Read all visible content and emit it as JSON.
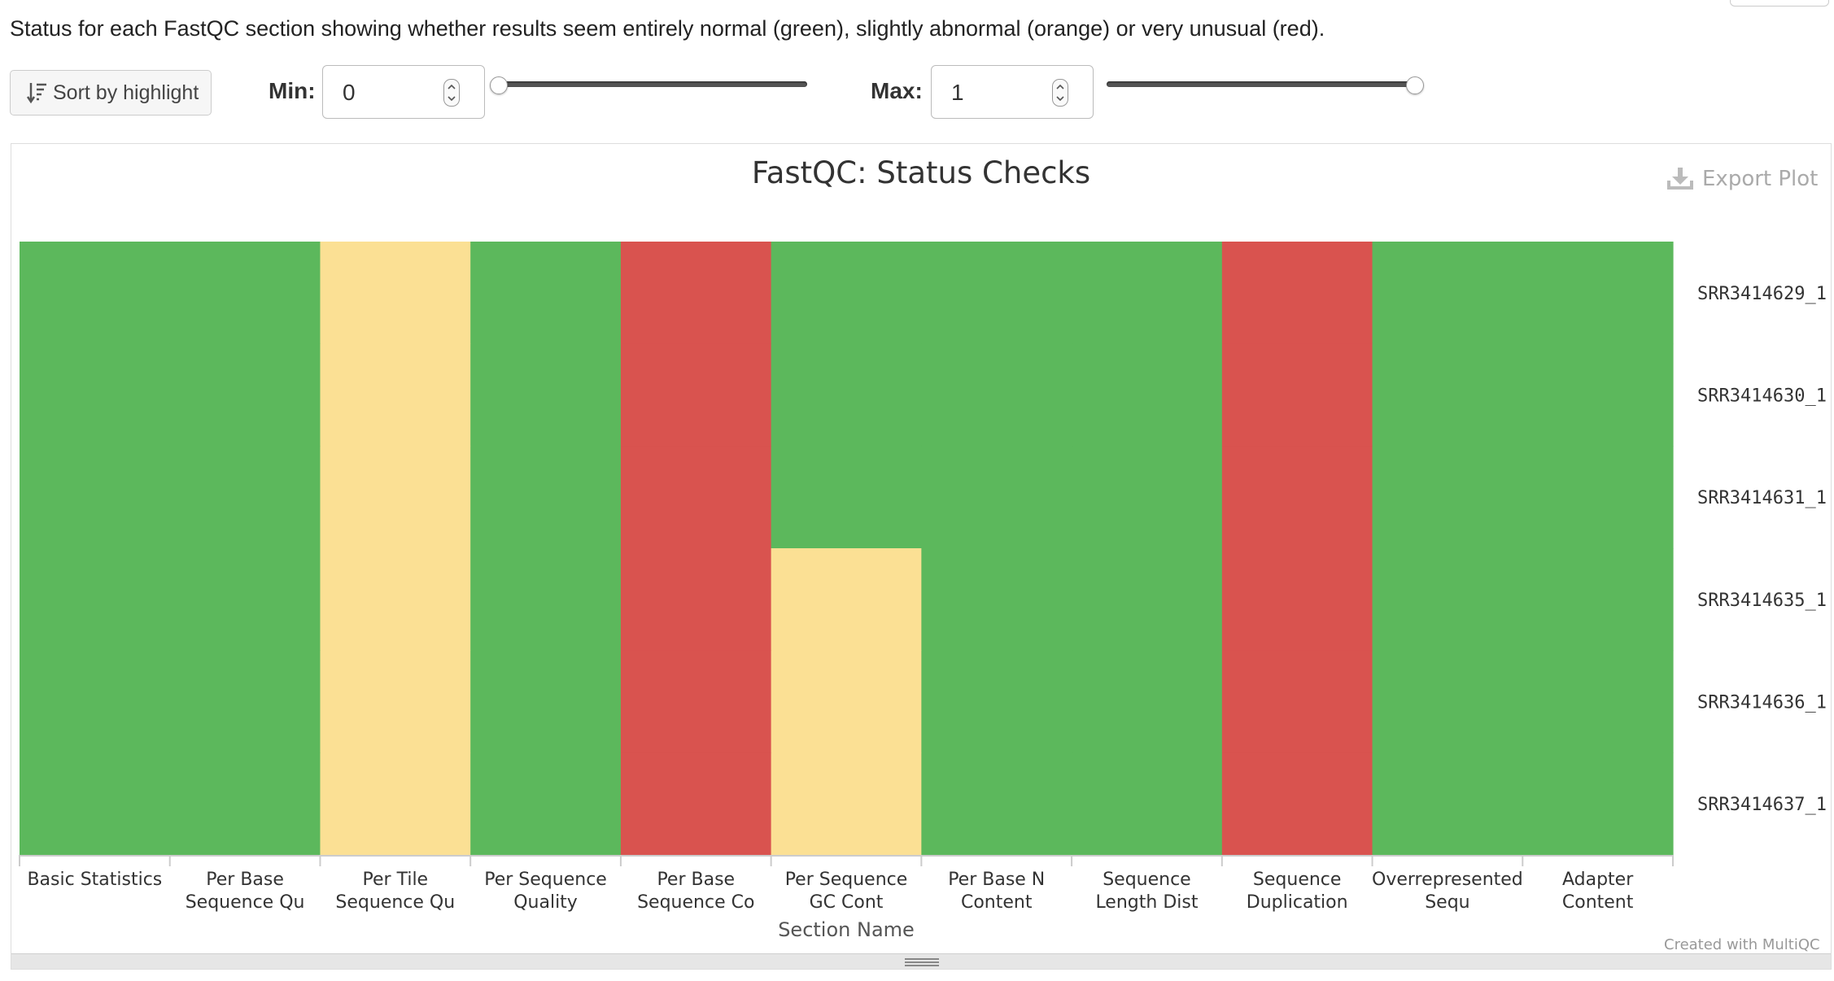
{
  "description": "Status for each FastQC section showing whether results seem entirely normal (green), slightly abnormal (orange) or very unusual (red).",
  "toolbar": {
    "sort_label": "Sort by highlight",
    "min_label": "Min:",
    "min_value": "0",
    "max_label": "Max:",
    "max_value": "1"
  },
  "sliders": {
    "min_fraction": 0,
    "max_fraction": 1
  },
  "plot": {
    "export_label": "Export Plot",
    "credits": "Created with MultiQC"
  },
  "colors": {
    "pass": "#5cb85c",
    "warn": "#fbe094",
    "fail": "#d9534f",
    "axis": "#cccccc",
    "label": "#333333"
  },
  "chart_data": {
    "type": "heatmap",
    "title": "FastQC: Status Checks",
    "xlabel": "Section Name",
    "ylabel": "",
    "x_categories": [
      [
        "Basic Statistics"
      ],
      [
        "Per Base",
        "Sequence Qu"
      ],
      [
        "Per Tile",
        "Sequence Qu"
      ],
      [
        "Per Sequence",
        "Quality"
      ],
      [
        "Per Base",
        "Sequence Co"
      ],
      [
        "Per Sequence",
        "GC Cont"
      ],
      [
        "Per Base N",
        "Content"
      ],
      [
        "Sequence",
        "Length Dist"
      ],
      [
        "Sequence",
        "Duplication"
      ],
      [
        "Overrepresented",
        "Sequ"
      ],
      [
        "Adapter",
        "Content"
      ]
    ],
    "y_categories": [
      "SRR3414629_1",
      "SRR3414630_1",
      "SRR3414631_1",
      "SRR3414635_1",
      "SRR3414636_1",
      "SRR3414637_1"
    ],
    "status_values": {
      "pass": 1,
      "warn": 0.5,
      "fail": 0.25
    },
    "values": [
      [
        1,
        1,
        0.5,
        1,
        0.25,
        1,
        1,
        1,
        0.25,
        1,
        1
      ],
      [
        1,
        1,
        0.5,
        1,
        0.25,
        1,
        1,
        1,
        0.25,
        1,
        1
      ],
      [
        1,
        1,
        0.5,
        1,
        0.25,
        1,
        1,
        1,
        0.25,
        1,
        1
      ],
      [
        1,
        1,
        0.5,
        1,
        0.25,
        0.5,
        1,
        1,
        0.25,
        1,
        1
      ],
      [
        1,
        1,
        0.5,
        1,
        0.25,
        0.5,
        1,
        1,
        0.25,
        1,
        1
      ],
      [
        1,
        1,
        0.5,
        1,
        0.25,
        0.5,
        1,
        1,
        0.25,
        1,
        1
      ]
    ],
    "grid": false,
    "legend": "none"
  }
}
